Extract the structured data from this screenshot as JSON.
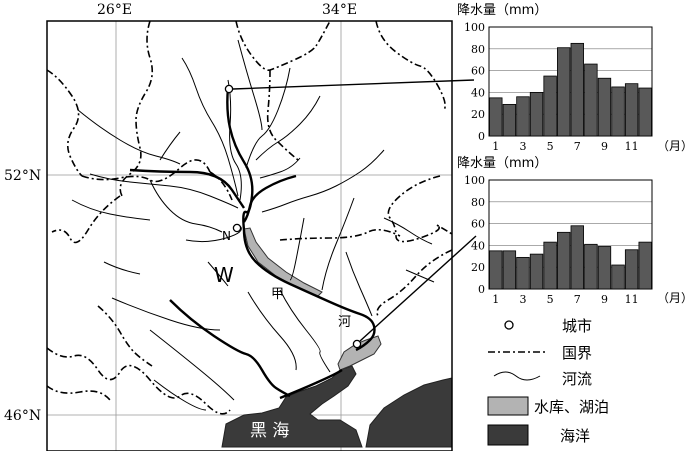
{
  "map": {
    "coord_labels": {
      "lon_26": "26°E",
      "lon_34": "34°E",
      "lat_52": "52°N",
      "lat_46": "46°N"
    },
    "place_labels": {
      "region_w": "W",
      "city_n": "N",
      "river_jia_1": "甲",
      "river_jia_2": "河",
      "black_sea": "黑 海"
    }
  },
  "chart_data": [
    {
      "type": "bar",
      "title": "",
      "ylabel": "降水量（mm）",
      "xlabel": "（月）",
      "categories": [
        "1",
        "2",
        "3",
        "4",
        "5",
        "6",
        "7",
        "8",
        "9",
        "10",
        "11",
        "12"
      ],
      "tick_labels_x": [
        "1",
        "3",
        "5",
        "7",
        "9",
        "11"
      ],
      "values": [
        35,
        29,
        36,
        40,
        55,
        81,
        85,
        66,
        53,
        45,
        48,
        44
      ],
      "ylim": [
        0,
        100
      ],
      "yticks": [
        0,
        20,
        40,
        60,
        80,
        100
      ],
      "grid": true,
      "bar_color": "#595959"
    },
    {
      "type": "bar",
      "title": "",
      "ylabel": "降水量（mm）",
      "xlabel": "（月）",
      "categories": [
        "1",
        "2",
        "3",
        "4",
        "5",
        "6",
        "7",
        "8",
        "9",
        "10",
        "11",
        "12"
      ],
      "tick_labels_x": [
        "1",
        "3",
        "5",
        "7",
        "9",
        "11"
      ],
      "values": [
        35,
        35,
        29,
        32,
        43,
        52,
        58,
        41,
        39,
        22,
        36,
        43
      ],
      "ylim": [
        0,
        100
      ],
      "yticks": [
        0,
        20,
        40,
        60,
        80,
        100
      ],
      "grid": true,
      "bar_color": "#595959"
    }
  ],
  "legend": {
    "items": [
      {
        "symbol": "city-icon",
        "label": "城市"
      },
      {
        "symbol": "border-line-icon",
        "label": "国界"
      },
      {
        "symbol": "river-line-icon",
        "label": "河流"
      },
      {
        "symbol": "reservoir-icon",
        "label": "水库、湖泊",
        "color": "#b3b3b3"
      },
      {
        "symbol": "ocean-icon",
        "label": "海洋",
        "color": "#3a3a3a"
      }
    ]
  }
}
